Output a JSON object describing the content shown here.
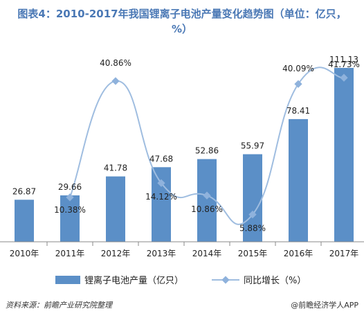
{
  "title": "图表4：2010-2017年我国锂离子电池产量变化趋势图（单位：亿只，%）",
  "footer": {
    "source": "资料来源：前瞻产业研究院整理",
    "brand": "@前瞻经济学人APP"
  },
  "colors": {
    "bar": "#5b8fc7",
    "line": "#9fbde0",
    "marker": "#8fb2dc",
    "title": "#4a78b5"
  },
  "chart_data": {
    "type": "bar",
    "categories": [
      "2010年",
      "2011年",
      "2012年",
      "2013年",
      "2014年",
      "2015年",
      "2016年",
      "2017年"
    ],
    "series": [
      {
        "name": "锂离子电池产量（亿只）",
        "type": "bar",
        "values": [
          26.87,
          29.66,
          41.78,
          47.68,
          52.86,
          55.97,
          78.41,
          111.13
        ],
        "labels": [
          "26.87",
          "29.66",
          "41.78",
          "47.68",
          "52.86",
          "55.97",
          "78.41",
          "111.13"
        ]
      },
      {
        "name": "同比增长（%）",
        "type": "line",
        "smooth": true,
        "values": [
          null,
          10.38,
          40.86,
          14.12,
          10.86,
          5.88,
          40.09,
          41.73
        ],
        "labels": [
          "",
          "10.38%",
          "40.86%",
          "14.12%",
          "10.86%",
          "5.88%",
          "40.09%",
          "41.73%"
        ]
      }
    ],
    "ylim_bar": [
      0,
      120
    ],
    "legend_position": "bottom",
    "grid": false
  }
}
